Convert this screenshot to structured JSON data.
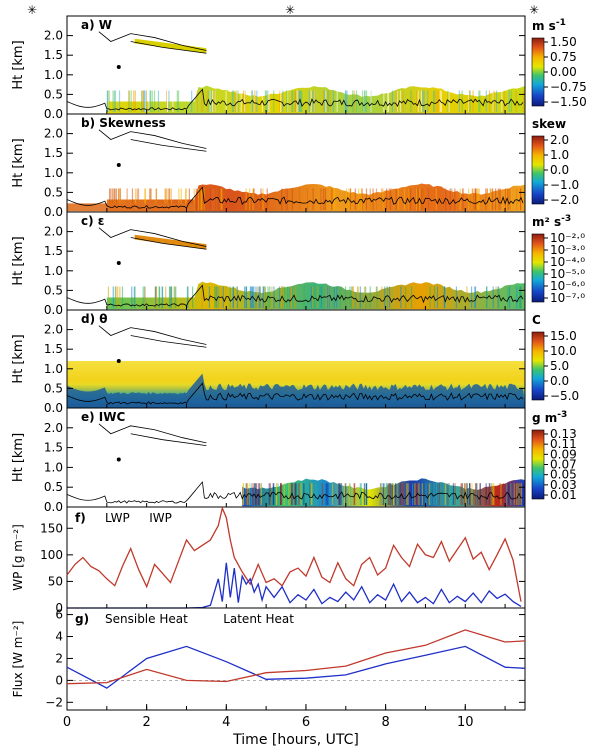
{
  "chart_data": [
    {
      "type": "heatmap",
      "panel_label": "a) W",
      "ylabel": "Ht [km]",
      "yticks": [
        "0.0",
        "0.5",
        "1.0",
        "1.5",
        "2.0"
      ],
      "ylim": [
        0,
        2.5
      ],
      "xlim": [
        0,
        11.5
      ],
      "colorbar": {
        "unit": "m s",
        "unit_exp": "-1",
        "ticks": [
          "1.50",
          "0.75",
          "0.00",
          "−0.75",
          "−1.50"
        ],
        "range": [
          -1.5,
          1.5
        ]
      },
      "fill_style": "mixed",
      "cloud_layer": {
        "base_km": 0.35,
        "top_km": 0.6
      },
      "upper_layer": {
        "x": [
          2.9,
          3.5
        ],
        "top_km": [
          2.0,
          1.65
        ],
        "base_km": [
          1.75,
          1.55
        ]
      }
    },
    {
      "type": "heatmap",
      "panel_label": "b) Skewness",
      "ylabel": "Ht [km]",
      "yticks": [
        "0.0",
        "0.5",
        "1.0",
        "1.5",
        "2.0"
      ],
      "ylim": [
        0,
        2.5
      ],
      "xlim": [
        0,
        11.5
      ],
      "colorbar": {
        "unit": "skew",
        "unit_exp": "",
        "ticks": [
          "2.0",
          "1.0",
          "0.0",
          "−1.0",
          "−2.0"
        ],
        "range": [
          -2,
          2
        ]
      },
      "fill_style": "warm"
    },
    {
      "type": "heatmap",
      "panel_label": "c) ε",
      "ylabel": "Ht [km]",
      "yticks": [
        "0.0",
        "0.5",
        "1.0",
        "1.5",
        "2.0"
      ],
      "ylim": [
        0,
        2.5
      ],
      "xlim": [
        0,
        11.5
      ],
      "colorbar": {
        "unit": "m² s",
        "unit_exp": "-3",
        "ticks": [
          "10⁻²·⁰",
          "10⁻³·⁰",
          "10⁻⁴·⁰",
          "10⁻⁵·⁰",
          "10⁻⁶·⁰",
          "10⁻⁷·⁰"
        ],
        "range": [
          -7,
          -2
        ]
      },
      "fill_style": "green"
    },
    {
      "type": "heatmap",
      "panel_label": "d) θ",
      "ylabel": "Ht [km]",
      "yticks": [
        "0.0",
        "0.5",
        "1.0",
        "1.5",
        "2.0"
      ],
      "ylim": [
        0,
        2.5
      ],
      "xlim": [
        0,
        11.5
      ],
      "colorbar": {
        "unit": "C",
        "unit_exp": "",
        "ticks": [
          "15.0",
          "10.0",
          "5.0",
          "0.0",
          "−5.0"
        ],
        "range": [
          -5,
          15
        ]
      },
      "fill_style": "theta"
    },
    {
      "type": "heatmap",
      "panel_label": "e) IWC",
      "ylabel": "Ht [km]",
      "yticks": [
        "0.0",
        "0.5",
        "1.0",
        "1.5",
        "2.0"
      ],
      "ylim": [
        0,
        2.5
      ],
      "xlim": [
        0,
        11.5
      ],
      "colorbar": {
        "unit": "g m",
        "unit_exp": "-3",
        "ticks": [
          "0.13",
          "0.11",
          "0.09",
          "0.07",
          "0.05",
          "0.03",
          "0.01"
        ],
        "range": [
          0.01,
          0.13
        ]
      },
      "fill_style": "iwc"
    },
    {
      "type": "line",
      "panel_label": "f)",
      "ylabel": "WP [g m⁻²]",
      "yticks": [
        "0",
        "50",
        "100",
        "150"
      ],
      "ylim": [
        0,
        190
      ],
      "xlim": [
        0,
        11.5
      ],
      "series": [
        {
          "name": "LWP",
          "color": "#c0392b",
          "x": [
            0,
            0.2,
            0.4,
            0.6,
            0.8,
            1.0,
            1.2,
            1.4,
            1.6,
            1.8,
            2.0,
            2.2,
            2.4,
            2.6,
            2.8,
            3.0,
            3.2,
            3.4,
            3.6,
            3.8,
            3.9,
            4.0,
            4.1,
            4.2,
            4.4,
            4.6,
            4.8,
            5.0,
            5.2,
            5.4,
            5.6,
            5.8,
            6.0,
            6.2,
            6.4,
            6.6,
            6.8,
            7.0,
            7.2,
            7.4,
            7.6,
            7.8,
            8.0,
            8.2,
            8.4,
            8.6,
            8.8,
            9.0,
            9.2,
            9.4,
            9.6,
            9.8,
            10.0,
            10.2,
            10.4,
            10.6,
            10.8,
            11.0,
            11.2,
            11.4
          ],
          "y": [
            62,
            82,
            95,
            78,
            70,
            55,
            42,
            80,
            112,
            72,
            40,
            82,
            65,
            48,
            88,
            128,
            108,
            118,
            128,
            155,
            188,
            170,
            128,
            95,
            68,
            45,
            82,
            48,
            55,
            42,
            68,
            75,
            60,
            95,
            58,
            48,
            85,
            55,
            42,
            82,
            95,
            62,
            75,
            118,
            95,
            78,
            120,
            100,
            95,
            125,
            88,
            110,
            132,
            92,
            105,
            72,
            100,
            130,
            90,
            12
          ]
        },
        {
          "name": "IWP",
          "color": "#1f2fc8",
          "x": [
            0,
            0.5,
            1.0,
            1.5,
            2.0,
            2.5,
            3.0,
            3.4,
            3.6,
            3.8,
            3.9,
            4.0,
            4.1,
            4.2,
            4.3,
            4.4,
            4.5,
            4.6,
            4.7,
            4.8,
            4.9,
            5.0,
            5.2,
            5.4,
            5.6,
            5.8,
            6.0,
            6.2,
            6.4,
            6.6,
            6.8,
            7.0,
            7.2,
            7.4,
            7.6,
            7.8,
            8.0,
            8.2,
            8.4,
            8.6,
            8.8,
            9.0,
            9.2,
            9.4,
            9.6,
            9.8,
            10.0,
            10.2,
            10.4,
            10.6,
            10.8,
            11.0,
            11.2,
            11.4
          ],
          "y": [
            0,
            0,
            0,
            0,
            0,
            0,
            0,
            1,
            5,
            55,
            12,
            85,
            20,
            75,
            10,
            60,
            45,
            55,
            30,
            45,
            15,
            40,
            20,
            40,
            10,
            25,
            15,
            35,
            8,
            20,
            12,
            30,
            15,
            40,
            10,
            25,
            15,
            45,
            12,
            30,
            10,
            20,
            8,
            35,
            10,
            22,
            12,
            28,
            10,
            32,
            18,
            26,
            12,
            3
          ]
        }
      ]
    },
    {
      "type": "line",
      "panel_label": "g)",
      "ylabel": "Flux [W m⁻²]",
      "yticks": [
        "−2",
        "0",
        "2",
        "4",
        "6"
      ],
      "ylim": [
        -2.7,
        6.6
      ],
      "xlim": [
        0,
        11.5
      ],
      "xlabel": "Time [hours, UTC]",
      "xticks": [
        "0",
        "2",
        "4",
        "6",
        "8",
        "10"
      ],
      "series": [
        {
          "name": "Sensible Heat",
          "color": "#1f2fc8",
          "x": [
            0,
            1.0,
            2.0,
            3.0,
            4.0,
            5.0,
            6.0,
            7.0,
            8.0,
            9.0,
            10.0,
            11.0,
            11.5
          ],
          "y": [
            1.2,
            -0.7,
            2.0,
            3.1,
            1.7,
            0.1,
            0.2,
            0.5,
            1.5,
            2.3,
            3.1,
            1.2,
            1.1
          ]
        },
        {
          "name": "Latent Heat",
          "color": "#c0392b",
          "x": [
            0,
            1.0,
            2.0,
            3.0,
            4.0,
            5.0,
            6.0,
            7.0,
            8.0,
            9.0,
            10.0,
            11.0,
            11.5
          ],
          "y": [
            -0.3,
            -0.2,
            1.0,
            0.0,
            -0.1,
            0.7,
            0.9,
            1.3,
            2.5,
            3.2,
            4.6,
            3.5,
            3.6
          ]
        }
      ]
    }
  ]
}
